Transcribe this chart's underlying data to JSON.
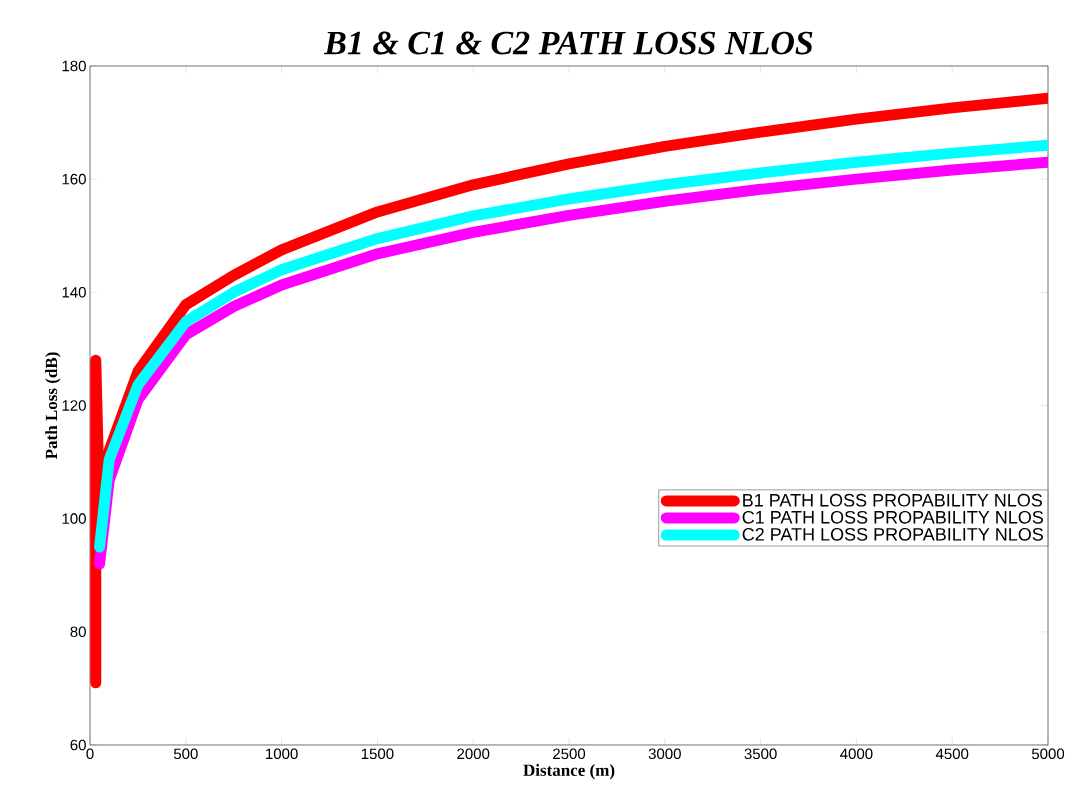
{
  "chart_data": {
    "type": "line",
    "title": "B1  & C1 & C2 PATH LOSS  NLOS",
    "xlabel": "Distance (m)",
    "ylabel": "Path Loss (dB)",
    "xlim": [
      0,
      5000
    ],
    "ylim": [
      60,
      180
    ],
    "xticks": [
      0,
      500,
      1000,
      1500,
      2000,
      2500,
      3000,
      3500,
      4000,
      4500,
      5000
    ],
    "yticks": [
      60,
      80,
      100,
      120,
      140,
      160,
      180
    ],
    "grid": false,
    "legend": "right",
    "line_style": "solid",
    "series": [
      {
        "name": "B1 PATH LOSS PROPABILITY NLOS",
        "color": "#ff0000",
        "x": [
          30,
          30,
          50,
          100,
          250,
          500,
          750,
          1000,
          1500,
          2000,
          2500,
          3000,
          3500,
          4000,
          4500,
          5000
        ],
        "values": [
          71,
          128,
          101,
          112,
          126,
          137.8,
          143,
          147.5,
          154.2,
          159,
          162.7,
          165.8,
          168.3,
          170.6,
          172.6,
          174.3
        ]
      },
      {
        "name": "C1 PATH LOSS PROPABILITY NLOS",
        "color": "#ff00ff",
        "x": [
          50,
          100,
          250,
          500,
          750,
          1000,
          1500,
          2000,
          2500,
          3000,
          3500,
          4000,
          4500,
          5000
        ],
        "values": [
          92,
          106.8,
          121,
          132.5,
          137.5,
          141.3,
          146.8,
          150.6,
          153.6,
          156.1,
          158.2,
          160,
          161.6,
          163
        ]
      },
      {
        "name": "C2 PATH LOSS PROPABILITY NLOS",
        "color": "#00ffff",
        "x": [
          50,
          100,
          250,
          500,
          750,
          1000,
          1500,
          2000,
          2500,
          3000,
          3500,
          4000,
          4500,
          5000
        ],
        "values": [
          95,
          110.4,
          123.6,
          134.8,
          140,
          144,
          149.5,
          153.5,
          156.5,
          159,
          161.1,
          163,
          164.6,
          166
        ]
      }
    ]
  }
}
